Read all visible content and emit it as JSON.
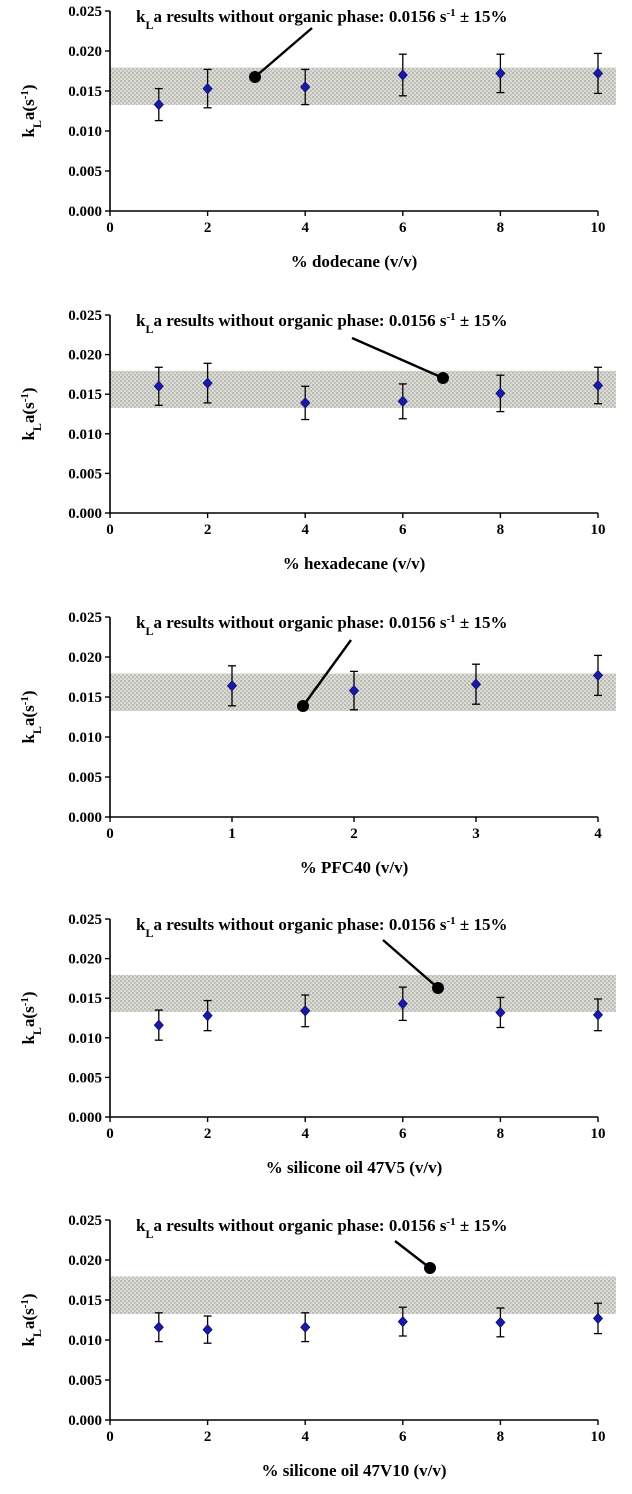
{
  "chart_data": [
    {
      "type": "scatter",
      "title": "",
      "annotation": {
        "prefix": "k",
        "sub": "L",
        "mid": "a results without organic phase: 0.0156 s",
        "sup": "-1",
        "suffix": " ± 15%"
      },
      "band": {
        "center": 0.0156,
        "low": 0.01326,
        "high": 0.01794
      },
      "xlabel": "% dodecane (v/v)",
      "ylabel": {
        "main": "k",
        "sub": "L",
        "rest": "a(s",
        "sup": "-1",
        "end": ")"
      },
      "xlim": [
        0,
        10
      ],
      "ylim": [
        0,
        0.025
      ],
      "x_ticks": [
        "0",
        "2",
        "4",
        "6",
        "8",
        "10"
      ],
      "y_ticks": [
        "0.000",
        "0.005",
        "0.010",
        "0.015",
        "0.020",
        "0.025"
      ],
      "marker_color": "#1a1aa8",
      "series": [
        {
          "x": [
            1,
            2,
            4,
            6,
            8,
            10
          ],
          "y": [
            0.0133,
            0.0153,
            0.0155,
            0.017,
            0.0172,
            0.0172
          ],
          "error": [
            0.002,
            0.0024,
            0.0022,
            0.0026,
            0.0024,
            0.0025
          ]
        }
      ]
    },
    {
      "type": "scatter",
      "title": "",
      "annotation": {
        "prefix": "k",
        "sub": "L",
        "mid": "a results without organic phase: 0.0156 s",
        "sup": "-1",
        "suffix": " ± 15%"
      },
      "band": {
        "center": 0.0156,
        "low": 0.01326,
        "high": 0.01794
      },
      "xlabel": "% hexadecane (v/v)",
      "ylabel": {
        "main": "k",
        "sub": "L",
        "rest": "a(s",
        "sup": "-1",
        "end": ")"
      },
      "xlim": [
        0,
        10
      ],
      "ylim": [
        0,
        0.025
      ],
      "x_ticks": [
        "0",
        "2",
        "4",
        "6",
        "8",
        "10"
      ],
      "y_ticks": [
        "0.000",
        "0.005",
        "0.010",
        "0.015",
        "0.020",
        "0.025"
      ],
      "marker_color": "#1a1aa8",
      "series": [
        {
          "x": [
            1,
            2,
            4,
            6,
            8,
            10
          ],
          "y": [
            0.016,
            0.0164,
            0.0139,
            0.0141,
            0.0151,
            0.0161
          ],
          "error": [
            0.0024,
            0.0025,
            0.0021,
            0.0022,
            0.0023,
            0.0023
          ]
        }
      ]
    },
    {
      "type": "scatter",
      "title": "",
      "annotation": {
        "prefix": "k",
        "sub": "L",
        "mid": "a results without organic phase: 0.0156 s",
        "sup": "-1",
        "suffix": " ± 15%"
      },
      "band": {
        "center": 0.0156,
        "low": 0.01326,
        "high": 0.01794
      },
      "xlabel": "% PFC40 (v/v)",
      "ylabel": {
        "main": "k",
        "sub": "L",
        "rest": "a(s",
        "sup": "-1",
        "end": ")"
      },
      "xlim": [
        0,
        4
      ],
      "ylim": [
        0,
        0.025
      ],
      "x_ticks": [
        "0",
        "1",
        "2",
        "3",
        "4"
      ],
      "y_ticks": [
        "0.000",
        "0.005",
        "0.010",
        "0.015",
        "0.020",
        "0.025"
      ],
      "marker_color": "#1a1aa8",
      "series": [
        {
          "x": [
            1,
            2,
            3,
            4
          ],
          "y": [
            0.0164,
            0.0158,
            0.0166,
            0.0177
          ],
          "error": [
            0.0025,
            0.0024,
            0.0025,
            0.0025
          ]
        }
      ]
    },
    {
      "type": "scatter",
      "title": "",
      "annotation": {
        "prefix": "k",
        "sub": "L",
        "mid": "a results without organic phase: 0.0156 s",
        "sup": "-1",
        "suffix": " ± 15%"
      },
      "band": {
        "center": 0.0156,
        "low": 0.01326,
        "high": 0.01794
      },
      "xlabel": "% silicone oil 47V5 (v/v)",
      "ylabel": {
        "main": "k",
        "sub": "L",
        "rest": "a(s",
        "sup": "-1",
        "end": ")"
      },
      "xlim": [
        0,
        10
      ],
      "ylim": [
        0,
        0.025
      ],
      "x_ticks": [
        "0",
        "2",
        "4",
        "6",
        "8",
        "10"
      ],
      "y_ticks": [
        "0.000",
        "0.005",
        "0.010",
        "0.015",
        "0.020",
        "0.025"
      ],
      "marker_color": "#1a1aa8",
      "series": [
        {
          "x": [
            1,
            2,
            4,
            6,
            8,
            10
          ],
          "y": [
            0.0116,
            0.0128,
            0.0134,
            0.0143,
            0.0132,
            0.0129
          ],
          "error": [
            0.0019,
            0.0019,
            0.002,
            0.0021,
            0.0019,
            0.002
          ]
        }
      ]
    },
    {
      "type": "scatter",
      "title": "",
      "annotation": {
        "prefix": "k",
        "sub": "L",
        "mid": "a results without organic phase: 0.0156 s",
        "sup": "-1",
        "suffix": " ± 15%"
      },
      "band": {
        "center": 0.0156,
        "low": 0.01326,
        "high": 0.01794
      },
      "xlabel": "% silicone oil 47V10 (v/v)",
      "ylabel": {
        "main": "k",
        "sub": "L",
        "rest": "a(s",
        "sup": "-1",
        "end": ")"
      },
      "xlim": [
        0,
        10
      ],
      "ylim": [
        0,
        0.025
      ],
      "x_ticks": [
        "0",
        "2",
        "4",
        "6",
        "8",
        "10"
      ],
      "y_ticks": [
        "0.000",
        "0.005",
        "0.010",
        "0.015",
        "0.020",
        "0.025"
      ],
      "marker_color": "#1a1aa8",
      "series": [
        {
          "x": [
            1,
            2,
            4,
            6,
            8,
            10
          ],
          "y": [
            0.0116,
            0.0113,
            0.0116,
            0.0123,
            0.0122,
            0.0127
          ],
          "error": [
            0.0018,
            0.0017,
            0.0018,
            0.0018,
            0.0018,
            0.0019
          ]
        }
      ]
    }
  ]
}
